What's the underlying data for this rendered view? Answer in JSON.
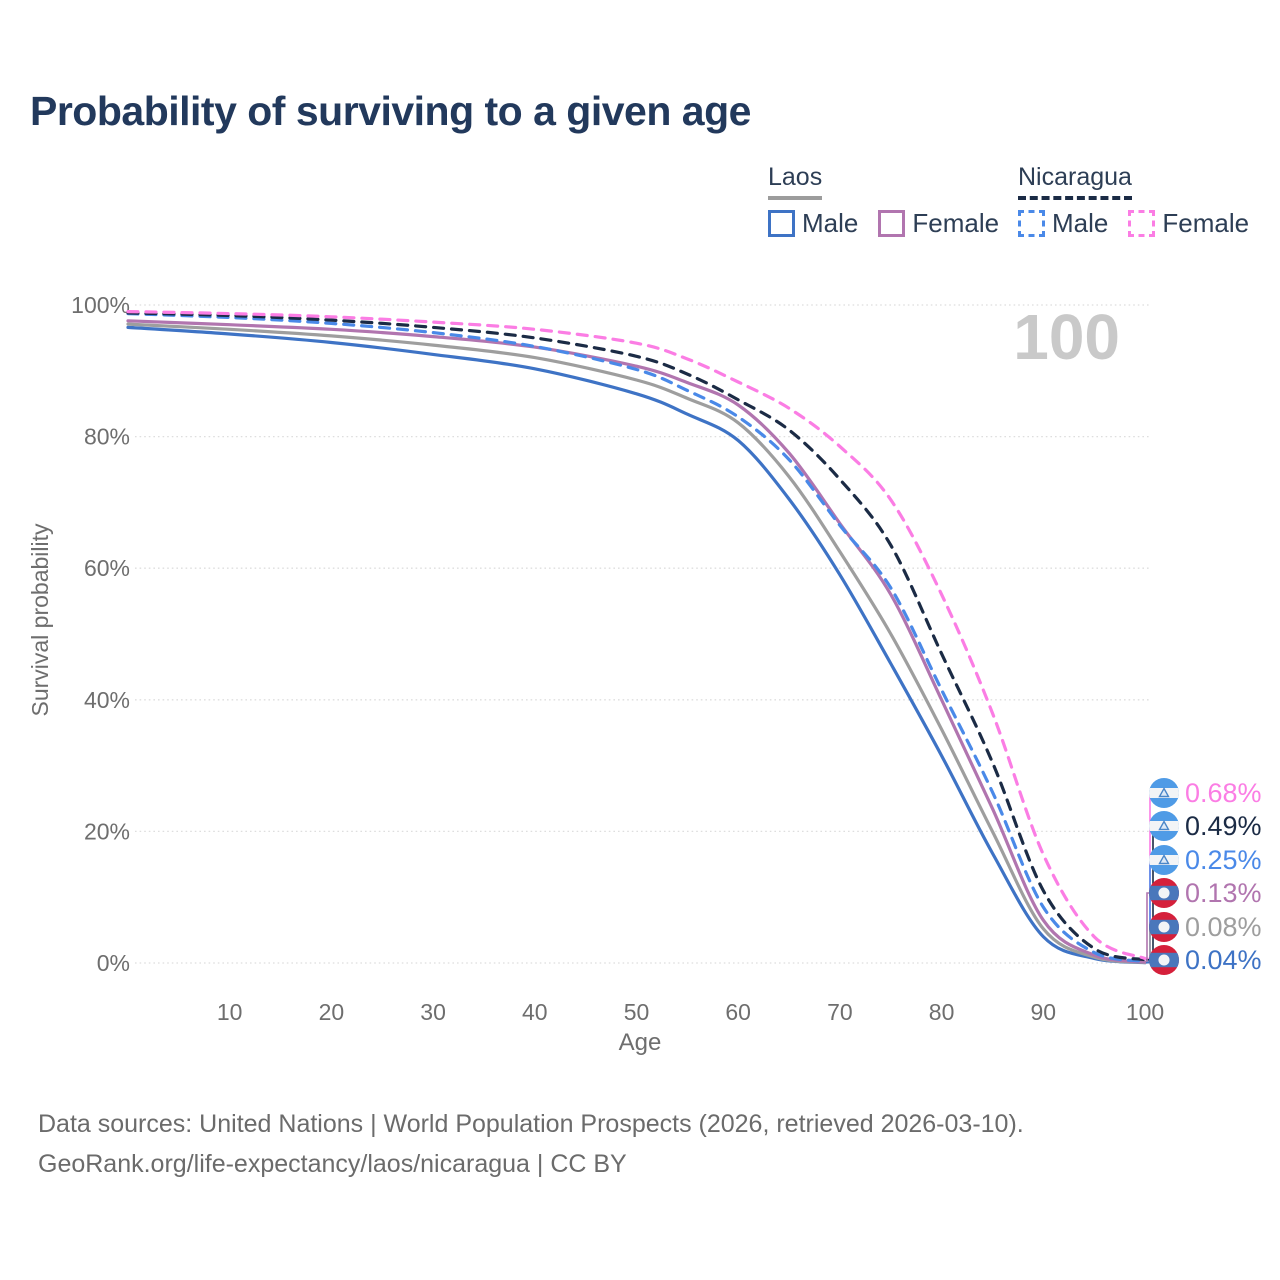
{
  "title": "Probability of surviving to a given age",
  "legend": {
    "groups": [
      {
        "name": "Laos",
        "line_style": "solid",
        "underline_color": "#9c9c9c",
        "items": [
          {
            "label": "Male",
            "color": "#3e73c5",
            "dashed": false
          },
          {
            "label": "Female",
            "color": "#b175af",
            "dashed": false
          }
        ]
      },
      {
        "name": "Nicaragua",
        "line_style": "dashed",
        "underline_color": "#1b2b45",
        "items": [
          {
            "label": "Male",
            "color": "#4a89e8",
            "dashed": true
          },
          {
            "label": "Female",
            "color": "#fb7de4",
            "dashed": true
          }
        ]
      }
    ]
  },
  "watermark_age_label": "100",
  "chart_data": {
    "type": "line",
    "title": "Probability of surviving to a given age",
    "xlabel": "Age",
    "ylabel": "Survival probability",
    "x_tick_labels": [
      "10",
      "20",
      "30",
      "40",
      "50",
      "60",
      "70",
      "80",
      "90",
      "100"
    ],
    "y_tick_labels": [
      "0%",
      "20%",
      "40%",
      "60%",
      "80%",
      "100%"
    ],
    "xlim": [
      0,
      100
    ],
    "ylim": [
      0,
      100
    ],
    "grid": "horizontal-dotted",
    "legend_position": "top-right",
    "ages": [
      0,
      10,
      20,
      30,
      40,
      50,
      55,
      60,
      65,
      70,
      75,
      80,
      85,
      90,
      95,
      100
    ],
    "series": [
      {
        "name": "Nicaragua Female",
        "country": "Nicaragua",
        "sex": "Female",
        "color": "#fb7de4",
        "dashed": true,
        "flag": "nicaragua",
        "values": [
          99.0,
          98.7,
          98.2,
          97.4,
          96.3,
          94.2,
          91.8,
          88.3,
          84.3,
          78.5,
          70.4,
          56.0,
          38.0,
          16.5,
          4.0,
          0.68
        ],
        "end_label": "0.68%"
      },
      {
        "name": "Nicaragua Both sexes",
        "country": "Nicaragua",
        "sex": "Both",
        "color": "#1b2b45",
        "dashed": true,
        "flag": "nicaragua",
        "values": [
          98.8,
          98.4,
          97.7,
          96.6,
          95.0,
          92.2,
          89.5,
          85.6,
          81.0,
          73.5,
          63.5,
          47.0,
          30.5,
          11.0,
          2.2,
          0.49
        ],
        "end_label": "0.49%"
      },
      {
        "name": "Nicaragua Male",
        "country": "Nicaragua",
        "sex": "Male",
        "color": "#4a89e8",
        "dashed": true,
        "flag": "nicaragua",
        "values": [
          98.7,
          98.1,
          97.2,
          95.8,
          93.7,
          90.2,
          87.0,
          83.0,
          76.5,
          66.5,
          57.0,
          41.5,
          26.0,
          8.5,
          1.6,
          0.25
        ],
        "end_label": "0.25%"
      },
      {
        "name": "Laos Female",
        "country": "Laos",
        "sex": "Female",
        "color": "#b175af",
        "dashed": false,
        "flag": "laos",
        "values": [
          97.6,
          97.0,
          96.3,
          95.2,
          93.6,
          90.7,
          88.2,
          84.8,
          77.5,
          66.8,
          56.0,
          40.0,
          23.5,
          6.5,
          1.2,
          0.13
        ],
        "end_label": "0.13%"
      },
      {
        "name": "Laos Both sexes",
        "country": "Laos",
        "sex": "Both",
        "color": "#9e9e9e",
        "dashed": false,
        "flag": "laos",
        "values": [
          97.1,
          96.3,
          95.3,
          93.9,
          92.0,
          88.6,
          85.8,
          82.1,
          73.9,
          62.5,
          50.0,
          35.5,
          20.0,
          5.2,
          0.9,
          0.08
        ],
        "end_label": "0.08%"
      },
      {
        "name": "Laos Male",
        "country": "Laos",
        "sex": "Male",
        "color": "#3e73c5",
        "dashed": false,
        "flag": "laos",
        "values": [
          96.6,
          95.6,
          94.3,
          92.5,
          90.3,
          86.5,
          83.4,
          79.4,
          70.5,
          59.0,
          45.5,
          31.5,
          16.7,
          4.0,
          0.7,
          0.04
        ],
        "end_label": "0.04%"
      }
    ]
  },
  "footer": {
    "line1": "Data sources: United Nations | World Population Prospects (2026, retrieved 2026-03-10).",
    "line2": "GeoRank.org/life-expectancy/laos/nicaragua | CC BY"
  }
}
